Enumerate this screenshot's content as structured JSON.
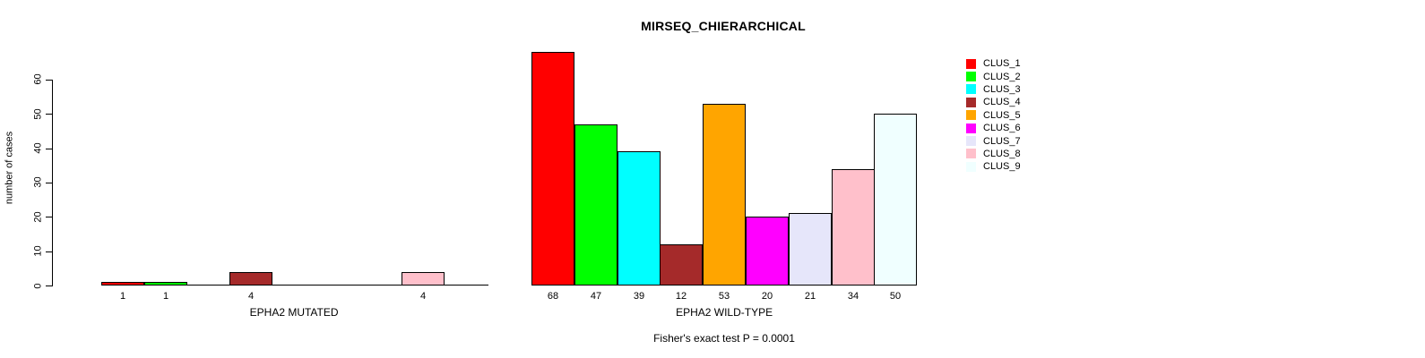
{
  "chart_data": {
    "type": "bar",
    "title": "MIRSEQ_CHIERARCHICAL",
    "ylabel": "number of cases",
    "ylim": [
      0,
      60
    ],
    "yticks": [
      0,
      10,
      20,
      30,
      40,
      50,
      60
    ],
    "grid": false,
    "legend_position": "right",
    "clusters": [
      {
        "name": "CLUS_1",
        "color": "#FF0000"
      },
      {
        "name": "CLUS_2",
        "color": "#00FF00"
      },
      {
        "name": "CLUS_3",
        "color": "#00FFFF"
      },
      {
        "name": "CLUS_4",
        "color": "#A52A2A"
      },
      {
        "name": "CLUS_5",
        "color": "#FFA500"
      },
      {
        "name": "CLUS_6",
        "color": "#FF00FF"
      },
      {
        "name": "CLUS_7",
        "color": "#E6E6FA"
      },
      {
        "name": "CLUS_8",
        "color": "#FFC0CB"
      },
      {
        "name": "CLUS_9",
        "color": "#F0FFFF"
      }
    ],
    "panels": [
      {
        "xlabel": "EPHA2 MUTATED",
        "values": [
          1,
          1,
          0,
          4,
          0,
          0,
          0,
          4,
          0
        ],
        "bar_labels": [
          "1",
          "1",
          "",
          "4",
          "",
          "",
          "",
          "4",
          ""
        ],
        "show_baseline": true
      },
      {
        "xlabel": "EPHA2 WILD-TYPE",
        "values": [
          68,
          47,
          39,
          12,
          53,
          20,
          21,
          34,
          50
        ],
        "bar_labels": [
          "68",
          "47",
          "39",
          "12",
          "53",
          "20",
          "21",
          "34",
          "50"
        ],
        "show_baseline": false
      }
    ],
    "annotation": "Fisher's exact test P = 0.0001"
  }
}
